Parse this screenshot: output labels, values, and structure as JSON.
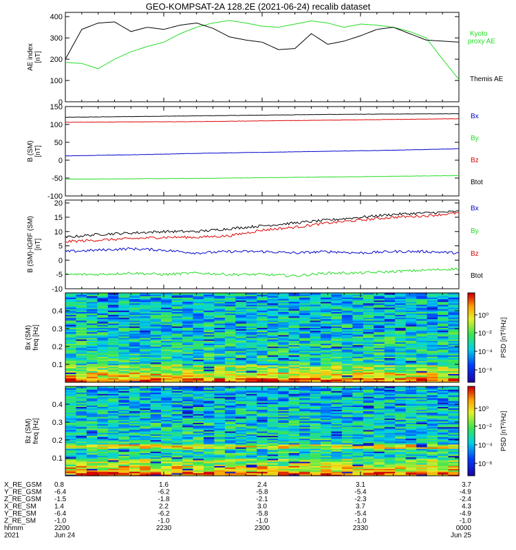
{
  "title": "GEO-KOMPSAT-2A 128.2E (2021-06-24) recalib dataset",
  "colors": {
    "black": "#000000",
    "green": "#22dd22",
    "red": "#dd0000",
    "blue": "#0000cc"
  },
  "panels": {
    "ae": {
      "ylabel": [
        "AE index",
        "[nT]"
      ],
      "legend": [
        {
          "label": "Kyoto",
          "color_key": "green"
        },
        {
          "label": "proxy AE",
          "color_key": "green"
        },
        {
          "label": "Themis AE",
          "color_key": "black"
        }
      ]
    },
    "b_sm": {
      "ylabel": [
        "B (SM)",
        "[nT]"
      ],
      "legend": [
        {
          "label": "Bx",
          "color_key": "blue"
        },
        {
          "label": "By",
          "color_key": "green"
        },
        {
          "label": "Bz",
          "color_key": "red"
        },
        {
          "label": "Btot",
          "color_key": "black"
        }
      ]
    },
    "b_igrf": {
      "ylabel": [
        "B (SM)-IGRF (SM)",
        "[nT]"
      ],
      "legend": [
        {
          "label": "Bx",
          "color_key": "blue"
        },
        {
          "label": "By",
          "color_key": "green"
        },
        {
          "label": "Bz",
          "color_key": "red"
        },
        {
          "label": "Btot",
          "color_key": "black"
        }
      ]
    },
    "spec_bx": {
      "ylabel": [
        "Bx (SM)",
        "freq [Hz]"
      ],
      "cbar_label": "PSD [nT²/Hz]"
    },
    "spec_bz": {
      "ylabel": [
        "Bz (SM)",
        "freq [Hz]"
      ],
      "cbar_label": "PSD [nT²/Hz]"
    }
  },
  "chart_data": [
    {
      "type": "line",
      "panel": "AE index",
      "x": [
        0,
        5,
        10,
        15,
        20,
        25,
        30,
        35,
        40,
        45,
        50,
        55,
        60,
        65,
        70,
        75,
        80,
        85,
        90,
        95,
        100,
        105,
        110,
        115,
        120
      ],
      "xlim": [
        0,
        120
      ],
      "ylim": [
        0,
        420
      ],
      "yticks": [
        0,
        100,
        200,
        300,
        400
      ],
      "series": [
        {
          "name": "Kyoto proxy AE",
          "color_key": "green",
          "values": [
            185,
            180,
            155,
            200,
            235,
            260,
            280,
            320,
            350,
            370,
            382,
            370,
            355,
            350,
            365,
            380,
            370,
            350,
            365,
            360,
            350,
            330,
            300,
            200,
            105
          ]
        },
        {
          "name": "Themis AE",
          "color_key": "black",
          "values": [
            200,
            340,
            370,
            375,
            330,
            350,
            340,
            360,
            370,
            345,
            305,
            290,
            280,
            245,
            250,
            320,
            270,
            285,
            310,
            340,
            350,
            320,
            290,
            285,
            280
          ]
        }
      ]
    },
    {
      "type": "line",
      "panel": "B (SM)",
      "x": [
        0,
        20,
        40,
        60,
        80,
        100,
        120
      ],
      "xlim": [
        0,
        120
      ],
      "ylim": [
        -100,
        150
      ],
      "yticks": [
        -100,
        -50,
        0,
        50,
        100,
        150
      ],
      "series": [
        {
          "name": "Btot",
          "color_key": "black",
          "values": [
            120,
            122,
            124,
            126,
            128,
            129,
            130
          ]
        },
        {
          "name": "Bz",
          "color_key": "red",
          "values": [
            106,
            107,
            108,
            110,
            112,
            114,
            116
          ]
        },
        {
          "name": "Bx",
          "color_key": "blue",
          "values": [
            12,
            15,
            19,
            22,
            25,
            28,
            32
          ]
        },
        {
          "name": "By",
          "color_key": "green",
          "values": [
            -53,
            -52,
            -51,
            -49,
            -47,
            -45,
            -43
          ]
        }
      ]
    },
    {
      "type": "line",
      "panel": "B (SM)-IGRF (SM)",
      "x": [
        0,
        10,
        20,
        30,
        40,
        50,
        60,
        70,
        80,
        90,
        100,
        110,
        120
      ],
      "xlim": [
        0,
        120
      ],
      "ylim": [
        -10,
        21
      ],
      "yticks": [
        -10,
        -5,
        0,
        5,
        10,
        15,
        20
      ],
      "series": [
        {
          "name": "Btot",
          "color_key": "black",
          "values": [
            8,
            9,
            9.5,
            10,
            10,
            11,
            12,
            13,
            14,
            15,
            16,
            16.5,
            17
          ]
        },
        {
          "name": "Bz",
          "color_key": "red",
          "values": [
            6.5,
            7,
            7.5,
            8,
            8,
            8.5,
            10.5,
            11.5,
            13,
            14,
            15,
            15.5,
            16.5
          ]
        },
        {
          "name": "Bx",
          "color_key": "blue",
          "values": [
            3,
            3.5,
            4,
            3.5,
            2.5,
            3,
            3,
            2.5,
            3,
            2.5,
            3,
            3,
            2.5
          ]
        },
        {
          "name": "By",
          "color_key": "green",
          "values": [
            -5,
            -5,
            -4.5,
            -5,
            -4.5,
            -5,
            -5,
            -5.5,
            -4.5,
            -4.5,
            -4,
            -3.5,
            -3
          ]
        }
      ]
    },
    {
      "type": "heatmap",
      "panel": "Bx (SM) spectrogram",
      "ylim": [
        0,
        0.5
      ],
      "yticks": [
        0.1,
        0.2,
        0.3,
        0.4
      ],
      "cbar_ticks": [
        "10⁰",
        "10⁻²",
        "10⁻⁴",
        "10⁻⁶"
      ]
    },
    {
      "type": "heatmap",
      "panel": "Bz (SM) spectrogram",
      "ylim": [
        0,
        0.5
      ],
      "yticks": [
        0.1,
        0.2,
        0.3,
        0.4
      ],
      "cbar_ticks": [
        "10⁰",
        "10⁻²",
        "10⁻⁴",
        "10⁻⁶"
      ]
    }
  ],
  "x_axis_table": {
    "row_labels": [
      "X_RE_GSM",
      "Y_RE_GSM",
      "Z_RE_GSM",
      "X_RE_SM",
      "Y_RE_SM",
      "Z_RE_SM",
      "hhmm",
      "2021"
    ],
    "columns": [
      {
        "x": 0,
        "values": [
          "0.8",
          "-6.4",
          "-1.5",
          "1.4",
          "-6.4",
          "-1.0",
          "2200",
          "Jun 24"
        ]
      },
      {
        "x": 30,
        "values": [
          "1.6",
          "-6.2",
          "-1.8",
          "2.2",
          "-6.2",
          "-1.0",
          "2230",
          ""
        ]
      },
      {
        "x": 60,
        "values": [
          "2.4",
          "-5.8",
          "-2.1",
          "3.0",
          "-5.8",
          "-1.0",
          "2300",
          ""
        ]
      },
      {
        "x": 90,
        "values": [
          "3.1",
          "-5.4",
          "-2.3",
          "3.7",
          "-5.4",
          "-1.0",
          "2330",
          ""
        ]
      },
      {
        "x": 120,
        "values": [
          "3.7",
          "-4.9",
          "-2.4",
          "4.3",
          "-4.9",
          "-1.0",
          "0000",
          "Jun 25"
        ]
      }
    ]
  }
}
